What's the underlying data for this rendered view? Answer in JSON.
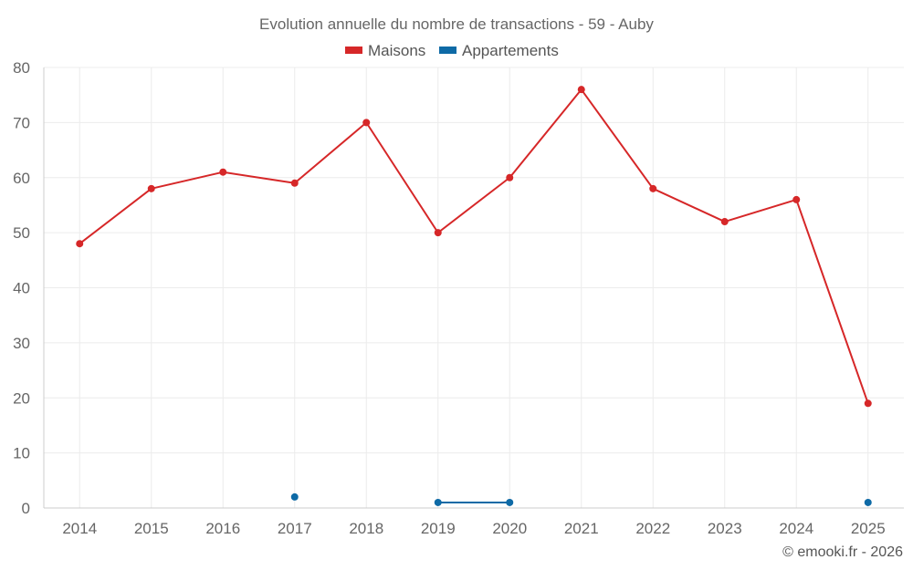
{
  "chart_data": {
    "type": "line",
    "title": "Evolution annuelle du nombre de transactions - 59 - Auby",
    "categories": [
      "2014",
      "2015",
      "2016",
      "2017",
      "2018",
      "2019",
      "2020",
      "2021",
      "2022",
      "2023",
      "2024",
      "2025"
    ],
    "ylim": [
      0,
      80
    ],
    "yticks": [
      0,
      10,
      20,
      30,
      40,
      50,
      60,
      70,
      80
    ],
    "grid": true,
    "legend_position": "top-center",
    "series": [
      {
        "name": "Maisons",
        "color": "#d62728",
        "values": [
          48,
          58,
          61,
          59,
          70,
          50,
          60,
          76,
          58,
          52,
          56,
          19
        ]
      },
      {
        "name": "Appartements",
        "color": "#0e6aa6",
        "values": [
          null,
          null,
          null,
          2,
          null,
          1,
          1,
          null,
          null,
          null,
          null,
          1
        ]
      }
    ],
    "credit": "© emooki.fr - 2026"
  }
}
